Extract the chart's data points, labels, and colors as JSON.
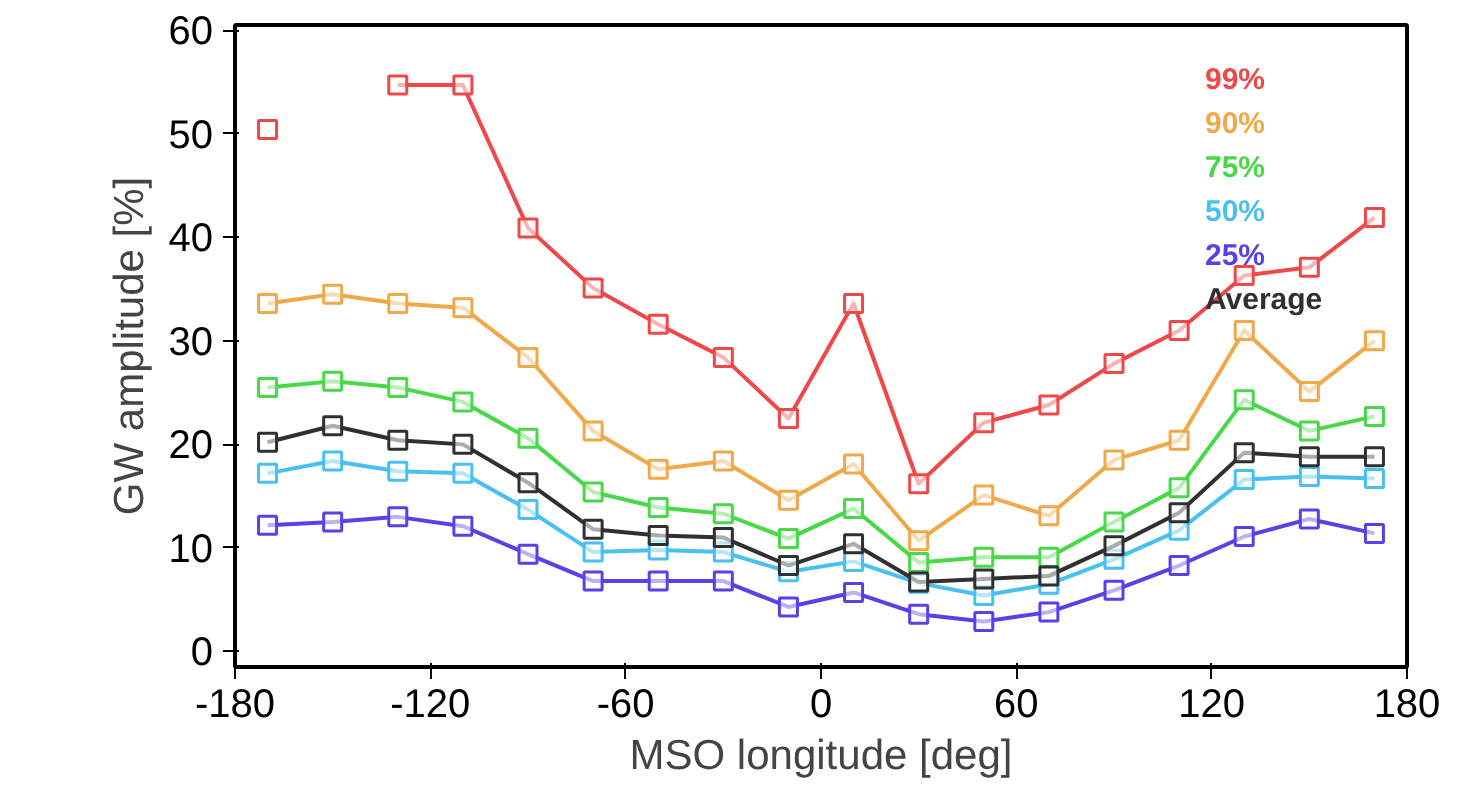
{
  "chart_data": {
    "type": "line",
    "xlabel": "MSO longitude [deg]",
    "ylabel": "GW amplitude [%]",
    "x": [
      -170,
      -150,
      -130,
      -110,
      -90,
      -70,
      -50,
      -30,
      -10,
      10,
      30,
      50,
      70,
      90,
      110,
      130,
      150,
      170
    ],
    "xlim": [
      -180,
      180
    ],
    "xticks": [
      -180,
      -120,
      -60,
      0,
      60,
      120,
      180
    ],
    "ylim": [
      -1.5,
      60.5
    ],
    "yticks": [
      0,
      10,
      20,
      30,
      40,
      50,
      60
    ],
    "marker": "square",
    "legend": "top right",
    "grid": false,
    "series": [
      {
        "name": "99%",
        "color": "#f04848",
        "values": [
          50.4,
          null,
          54.7,
          54.7,
          40.9,
          35.1,
          31.6,
          28.4,
          22.5,
          33.6,
          16.2,
          22.1,
          23.8,
          27.8,
          31.0,
          36.3,
          37.1,
          41.9
        ]
      },
      {
        "name": "90%",
        "color": "#f0a848",
        "values": [
          33.6,
          34.5,
          33.6,
          33.2,
          28.4,
          21.3,
          17.6,
          18.4,
          14.6,
          18.1,
          10.7,
          15.1,
          13.1,
          18.5,
          20.4,
          31.0,
          25.1,
          30.0
        ]
      },
      {
        "name": "75%",
        "color": "#48d848",
        "values": [
          25.5,
          26.1,
          25.5,
          24.1,
          20.6,
          15.4,
          13.9,
          13.3,
          10.9,
          13.8,
          8.6,
          9.1,
          9.1,
          12.5,
          15.8,
          24.3,
          21.3,
          22.7
        ]
      },
      {
        "name": "50%",
        "color": "#48c0f0",
        "values": [
          17.2,
          18.4,
          17.4,
          17.2,
          13.7,
          9.6,
          9.8,
          9.6,
          7.7,
          8.7,
          6.6,
          5.4,
          6.5,
          8.9,
          11.7,
          16.6,
          16.9,
          16.7
        ]
      },
      {
        "name": "25%",
        "color": "#5a40e8",
        "values": [
          12.2,
          12.5,
          13.0,
          12.1,
          9.4,
          6.8,
          6.8,
          6.8,
          4.3,
          5.7,
          3.6,
          2.9,
          3.8,
          5.9,
          8.3,
          11.1,
          12.8,
          11.4
        ]
      },
      {
        "name": "Average",
        "color": "#303030",
        "values": [
          20.2,
          21.8,
          20.4,
          20.0,
          16.3,
          11.8,
          11.2,
          11.0,
          8.3,
          10.4,
          6.7,
          7.0,
          7.3,
          10.2,
          13.4,
          19.2,
          18.8,
          18.8
        ]
      }
    ]
  }
}
